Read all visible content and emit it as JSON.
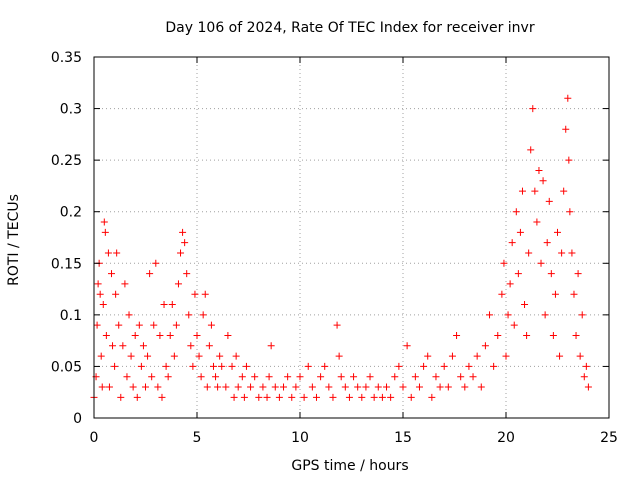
{
  "chart_data": {
    "type": "scatter",
    "title": "Day 106 of 2024, Rate Of TEC Index for receiver invr",
    "xlabel": "GPS time / hours",
    "ylabel": "ROTI / TECUs",
    "xlim": [
      0,
      25
    ],
    "ylim": [
      0,
      0.35
    ],
    "xticks": [
      0,
      5,
      10,
      15,
      20,
      25
    ],
    "xtick_labels": [
      "0",
      "5",
      "10",
      "15",
      "20",
      "25"
    ],
    "yticks": [
      0,
      0.05,
      0.1,
      0.15,
      0.2,
      0.25,
      0.3,
      0.35
    ],
    "ytick_labels": [
      "0",
      "0.05",
      "0.1",
      "0.15",
      "0.2",
      "0.25",
      "0.3",
      "0.35"
    ],
    "grid": true,
    "marker": "+",
    "marker_color": "#ff0000",
    "series": [
      {
        "name": "ROTI",
        "points": [
          [
            0.0,
            0.02
          ],
          [
            0.1,
            0.04
          ],
          [
            0.15,
            0.09
          ],
          [
            0.2,
            0.13
          ],
          [
            0.25,
            0.15
          ],
          [
            0.3,
            0.12
          ],
          [
            0.35,
            0.06
          ],
          [
            0.4,
            0.03
          ],
          [
            0.45,
            0.11
          ],
          [
            0.5,
            0.19
          ],
          [
            0.55,
            0.18
          ],
          [
            0.6,
            0.08
          ],
          [
            0.7,
            0.16
          ],
          [
            0.75,
            0.03
          ],
          [
            0.85,
            0.14
          ],
          [
            0.9,
            0.07
          ],
          [
            1.0,
            0.05
          ],
          [
            1.05,
            0.12
          ],
          [
            1.1,
            0.16
          ],
          [
            1.2,
            0.09
          ],
          [
            1.3,
            0.02
          ],
          [
            1.4,
            0.07
          ],
          [
            1.5,
            0.13
          ],
          [
            1.6,
            0.04
          ],
          [
            1.7,
            0.1
          ],
          [
            1.8,
            0.06
          ],
          [
            1.9,
            0.03
          ],
          [
            2.0,
            0.08
          ],
          [
            2.1,
            0.02
          ],
          [
            2.2,
            0.09
          ],
          [
            2.3,
            0.05
          ],
          [
            2.4,
            0.07
          ],
          [
            2.5,
            0.03
          ],
          [
            2.6,
            0.06
          ],
          [
            2.7,
            0.14
          ],
          [
            2.8,
            0.04
          ],
          [
            2.9,
            0.09
          ],
          [
            3.0,
            0.15
          ],
          [
            3.1,
            0.03
          ],
          [
            3.2,
            0.08
          ],
          [
            3.3,
            0.02
          ],
          [
            3.4,
            0.11
          ],
          [
            3.5,
            0.05
          ],
          [
            3.6,
            0.04
          ],
          [
            3.7,
            0.08
          ],
          [
            3.8,
            0.11
          ],
          [
            3.9,
            0.06
          ],
          [
            4.0,
            0.09
          ],
          [
            4.1,
            0.13
          ],
          [
            4.2,
            0.16
          ],
          [
            4.3,
            0.18
          ],
          [
            4.4,
            0.17
          ],
          [
            4.5,
            0.14
          ],
          [
            4.6,
            0.1
          ],
          [
            4.7,
            0.07
          ],
          [
            4.8,
            0.05
          ],
          [
            4.9,
            0.12
          ],
          [
            5.0,
            0.08
          ],
          [
            5.1,
            0.06
          ],
          [
            5.2,
            0.04
          ],
          [
            5.3,
            0.1
          ],
          [
            5.4,
            0.12
          ],
          [
            5.5,
            0.03
          ],
          [
            5.6,
            0.07
          ],
          [
            5.7,
            0.09
          ],
          [
            5.8,
            0.05
          ],
          [
            5.9,
            0.04
          ],
          [
            6.0,
            0.03
          ],
          [
            6.1,
            0.06
          ],
          [
            6.2,
            0.05
          ],
          [
            6.4,
            0.03
          ],
          [
            6.5,
            0.08
          ],
          [
            6.7,
            0.05
          ],
          [
            6.8,
            0.02
          ],
          [
            6.9,
            0.06
          ],
          [
            7.0,
            0.03
          ],
          [
            7.2,
            0.04
          ],
          [
            7.3,
            0.02
          ],
          [
            7.4,
            0.05
          ],
          [
            7.6,
            0.03
          ],
          [
            7.8,
            0.04
          ],
          [
            8.0,
            0.02
          ],
          [
            8.2,
            0.03
          ],
          [
            8.4,
            0.02
          ],
          [
            8.5,
            0.04
          ],
          [
            8.6,
            0.07
          ],
          [
            8.8,
            0.03
          ],
          [
            9.0,
            0.02
          ],
          [
            9.2,
            0.03
          ],
          [
            9.4,
            0.04
          ],
          [
            9.6,
            0.02
          ],
          [
            9.8,
            0.03
          ],
          [
            10.0,
            0.04
          ],
          [
            10.2,
            0.02
          ],
          [
            10.4,
            0.05
          ],
          [
            10.6,
            0.03
          ],
          [
            10.8,
            0.02
          ],
          [
            11.0,
            0.04
          ],
          [
            11.2,
            0.05
          ],
          [
            11.4,
            0.03
          ],
          [
            11.6,
            0.02
          ],
          [
            11.8,
            0.09
          ],
          [
            11.9,
            0.06
          ],
          [
            12.0,
            0.04
          ],
          [
            12.2,
            0.03
          ],
          [
            12.4,
            0.02
          ],
          [
            12.6,
            0.04
          ],
          [
            12.8,
            0.03
          ],
          [
            13.0,
            0.02
          ],
          [
            13.2,
            0.03
          ],
          [
            13.4,
            0.04
          ],
          [
            13.6,
            0.02
          ],
          [
            13.8,
            0.03
          ],
          [
            14.0,
            0.02
          ],
          [
            14.2,
            0.03
          ],
          [
            14.4,
            0.02
          ],
          [
            14.6,
            0.04
          ],
          [
            14.8,
            0.05
          ],
          [
            15.0,
            0.03
          ],
          [
            15.2,
            0.07
          ],
          [
            15.4,
            0.02
          ],
          [
            15.6,
            0.04
          ],
          [
            15.8,
            0.03
          ],
          [
            16.0,
            0.05
          ],
          [
            16.2,
            0.06
          ],
          [
            16.4,
            0.02
          ],
          [
            16.6,
            0.04
          ],
          [
            16.8,
            0.03
          ],
          [
            17.0,
            0.05
          ],
          [
            17.2,
            0.03
          ],
          [
            17.4,
            0.06
          ],
          [
            17.6,
            0.08
          ],
          [
            17.8,
            0.04
          ],
          [
            18.0,
            0.03
          ],
          [
            18.2,
            0.05
          ],
          [
            18.4,
            0.04
          ],
          [
            18.6,
            0.06
          ],
          [
            18.8,
            0.03
          ],
          [
            19.0,
            0.07
          ],
          [
            19.2,
            0.1
          ],
          [
            19.4,
            0.05
          ],
          [
            19.6,
            0.08
          ],
          [
            19.8,
            0.12
          ],
          [
            19.9,
            0.15
          ],
          [
            20.0,
            0.06
          ],
          [
            20.1,
            0.1
          ],
          [
            20.2,
            0.13
          ],
          [
            20.3,
            0.17
          ],
          [
            20.4,
            0.09
          ],
          [
            20.5,
            0.2
          ],
          [
            20.6,
            0.14
          ],
          [
            20.7,
            0.18
          ],
          [
            20.8,
            0.22
          ],
          [
            20.9,
            0.11
          ],
          [
            21.0,
            0.08
          ],
          [
            21.1,
            0.16
          ],
          [
            21.2,
            0.26
          ],
          [
            21.3,
            0.3
          ],
          [
            21.4,
            0.22
          ],
          [
            21.5,
            0.19
          ],
          [
            21.6,
            0.24
          ],
          [
            21.7,
            0.15
          ],
          [
            21.8,
            0.23
          ],
          [
            21.9,
            0.1
          ],
          [
            22.0,
            0.17
          ],
          [
            22.1,
            0.21
          ],
          [
            22.2,
            0.14
          ],
          [
            22.3,
            0.08
          ],
          [
            22.4,
            0.12
          ],
          [
            22.5,
            0.18
          ],
          [
            22.6,
            0.06
          ],
          [
            22.7,
            0.16
          ],
          [
            22.8,
            0.22
          ],
          [
            22.9,
            0.28
          ],
          [
            23.0,
            0.31
          ],
          [
            23.05,
            0.25
          ],
          [
            23.1,
            0.2
          ],
          [
            23.2,
            0.16
          ],
          [
            23.3,
            0.12
          ],
          [
            23.4,
            0.08
          ],
          [
            23.5,
            0.14
          ],
          [
            23.6,
            0.06
          ],
          [
            23.7,
            0.1
          ],
          [
            23.8,
            0.04
          ],
          [
            23.9,
            0.05
          ],
          [
            24.0,
            0.03
          ]
        ]
      }
    ]
  }
}
